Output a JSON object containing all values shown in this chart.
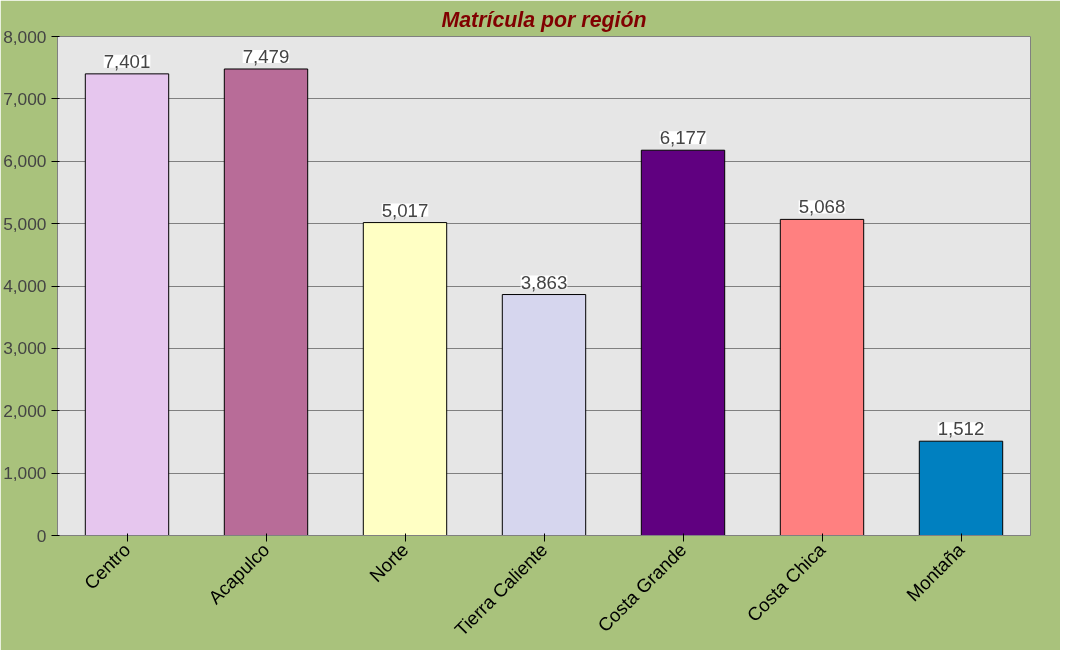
{
  "chart_data": {
    "type": "bar",
    "title": "Matrícula por región",
    "categories": [
      "Centro",
      "Acapulco",
      "Norte",
      "Tierra Caliente",
      "Costa Grande",
      "Costa Chica",
      "Montaña"
    ],
    "values": [
      7401,
      7479,
      5017,
      3863,
      6177,
      5068,
      1512
    ],
    "colors": [
      "#e6c6ee",
      "#b86c98",
      "#ffffc4",
      "#d6d6ee",
      "#600080",
      "#ff8080",
      "#0080c0"
    ],
    "value_labels": [
      "7,401",
      "7,479",
      "5,017",
      "3,863",
      "6,177",
      "5,068",
      "1,512"
    ],
    "ylim": [
      0,
      8000
    ],
    "yticks": [
      {
        "value": 0,
        "label": "0"
      },
      {
        "value": 1000,
        "label": "1,000"
      },
      {
        "value": 2000,
        "label": "2,000"
      },
      {
        "value": 3000,
        "label": "3,000"
      },
      {
        "value": 4000,
        "label": "4,000"
      },
      {
        "value": 5000,
        "label": "5,000"
      },
      {
        "value": 6000,
        "label": "6,000"
      },
      {
        "value": 7000,
        "label": "7,000"
      },
      {
        "value": 8000,
        "label": "8,000"
      }
    ],
    "grid": "y"
  }
}
